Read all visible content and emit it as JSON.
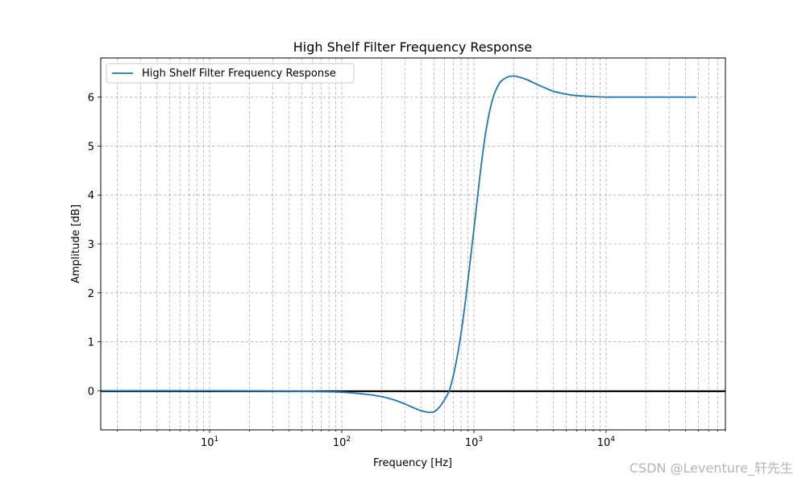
{
  "chart_data": {
    "type": "line",
    "title": "High Shelf Filter Frequency Response",
    "xlabel": "Frequency [Hz]",
    "ylabel": "Amplitude [dB]",
    "xscale": "log",
    "xlim": [
      1.5,
      80000
    ],
    "ylim": [
      -0.8,
      6.8
    ],
    "x_ticks": [
      {
        "value": 10,
        "base": "10",
        "exp": "1"
      },
      {
        "value": 100,
        "base": "10",
        "exp": "2"
      },
      {
        "value": 1000,
        "base": "10",
        "exp": "3"
      },
      {
        "value": 10000,
        "base": "10",
        "exp": "4"
      }
    ],
    "y_ticks": [
      0,
      1,
      2,
      3,
      4,
      5,
      6
    ],
    "grid": true,
    "grid_style": "dashed",
    "reference_line": {
      "y": 0,
      "color": "#000000"
    },
    "legend": {
      "placement": "upper-left",
      "entries": [
        "High Shelf Filter Frequency Response"
      ]
    },
    "series": [
      {
        "name": "High Shelf Filter Frequency Response",
        "color": "#1f77b4",
        "x": [
          1.5,
          10,
          50,
          100,
          150,
          200,
          250,
          300,
          350,
          400,
          450,
          500,
          550,
          600,
          650,
          700,
          750,
          800,
          850,
          900,
          1000,
          1100,
          1200,
          1300,
          1400,
          1500,
          1600,
          1800,
          2000,
          2200,
          2500,
          3000,
          3500,
          4000,
          5000,
          6000,
          7000,
          8000,
          10000,
          12000,
          15000,
          20000,
          30000,
          48000
        ],
        "y": [
          0.0,
          0.0,
          -0.01,
          -0.03,
          -0.07,
          -0.12,
          -0.19,
          -0.27,
          -0.35,
          -0.41,
          -0.44,
          -0.43,
          -0.33,
          -0.18,
          0.0,
          0.32,
          0.72,
          1.18,
          1.7,
          2.25,
          3.3,
          4.3,
          5.1,
          5.65,
          6.0,
          6.2,
          6.32,
          6.41,
          6.43,
          6.41,
          6.36,
          6.26,
          6.18,
          6.12,
          6.06,
          6.03,
          6.02,
          6.01,
          6.0,
          6.0,
          6.0,
          6.0,
          6.0,
          6.0
        ]
      }
    ]
  },
  "watermark": "CSDN @Leventure_轩先生"
}
